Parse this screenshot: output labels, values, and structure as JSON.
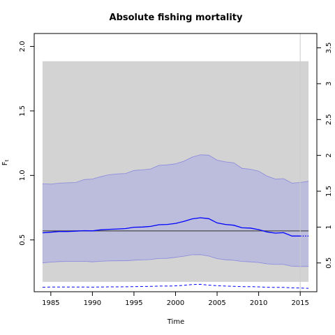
{
  "chart_data": {
    "type": "line",
    "title": "Absolute fishing mortality",
    "xlabel": "Time",
    "ylabel": "F",
    "ylabel_subscript": "t",
    "xlim": [
      1983,
      2017
    ],
    "ylim": [
      0.0984,
      2.1
    ],
    "y2lim": [
      0.0984,
      3.7
    ],
    "x_ticks": [
      "1985",
      "1990",
      "1995",
      "2000",
      "2005",
      "2010",
      "2015"
    ],
    "y_ticks": [
      "0.5",
      "1.0",
      "1.5",
      "2.0"
    ],
    "y2_ticks": [
      "0.5",
      "1",
      "1.5",
      "2",
      "2.5",
      "3",
      "3.5"
    ],
    "colors": {
      "estimate": "#0000ff",
      "ci_band": "#bcbcdc",
      "ci_edge": "#8888dd",
      "outer_band": "#d3d3d3",
      "reference": "#555555",
      "vline": "#cccccc"
    },
    "outer_band": {
      "x": [
        1984,
        2016
      ],
      "lower": 0.175,
      "upper": 1.885
    },
    "reference_line": 0.57,
    "vertical_line": 2015,
    "years": [
      1984,
      1985,
      1986,
      1987,
      1988,
      1989,
      1990,
      1991,
      1992,
      1993,
      1994,
      1995,
      1996,
      1997,
      1998,
      1999,
      2000,
      2001,
      2002,
      2003,
      2004,
      2005,
      2006,
      2007,
      2008,
      2009,
      2010,
      2011,
      2012,
      2013,
      2014,
      2015,
      2016
    ],
    "estimate": [
      0.555,
      0.56,
      0.565,
      0.565,
      0.568,
      0.572,
      0.57,
      0.578,
      0.582,
      0.585,
      0.588,
      0.598,
      0.6,
      0.605,
      0.618,
      0.62,
      0.628,
      0.643,
      0.663,
      0.672,
      0.665,
      0.632,
      0.62,
      0.614,
      0.594,
      0.592,
      0.58,
      0.562,
      0.553,
      0.556,
      0.53,
      0.53,
      0.53
    ],
    "ci_lower": [
      0.322,
      0.328,
      0.332,
      0.333,
      0.333,
      0.334,
      0.33,
      0.334,
      0.337,
      0.338,
      0.338,
      0.343,
      0.345,
      0.348,
      0.356,
      0.357,
      0.365,
      0.374,
      0.385,
      0.386,
      0.375,
      0.355,
      0.346,
      0.342,
      0.333,
      0.33,
      0.325,
      0.315,
      0.31,
      0.31,
      0.296,
      0.294,
      0.295
    ],
    "ci_upper": [
      0.935,
      0.932,
      0.94,
      0.943,
      0.945,
      0.968,
      0.972,
      0.99,
      1.005,
      1.012,
      1.015,
      1.038,
      1.043,
      1.05,
      1.078,
      1.082,
      1.09,
      1.11,
      1.142,
      1.16,
      1.157,
      1.118,
      1.105,
      1.098,
      1.055,
      1.048,
      1.033,
      0.995,
      0.972,
      0.975,
      0.94,
      0.945,
      0.955
    ],
    "lower_dashed": [
      0.133,
      0.135,
      0.135,
      0.135,
      0.135,
      0.135,
      0.134,
      0.135,
      0.136,
      0.136,
      0.137,
      0.138,
      0.139,
      0.14,
      0.142,
      0.142,
      0.144,
      0.148,
      0.154,
      0.156,
      0.15,
      0.145,
      0.142,
      0.14,
      0.138,
      0.138,
      0.136,
      0.133,
      0.132,
      0.132,
      0.128,
      0.127,
      0.125
    ],
    "dotted_from_year": 2015
  }
}
